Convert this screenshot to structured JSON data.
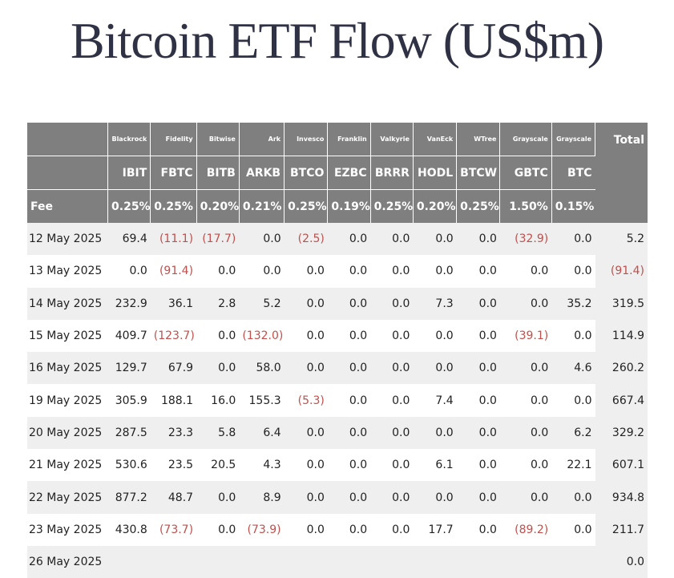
{
  "title": "Bitcoin ETF Flow (US$m)",
  "table": {
    "total_label": "Total",
    "fee_label": "Fee",
    "issuers": [
      "Blackrock",
      "Fidelity",
      "Bitwise",
      "Ark",
      "Invesco",
      "Franklin",
      "Valkyrie",
      "VanEck",
      "WTree",
      "Grayscale",
      "Grayscale"
    ],
    "tickers": [
      "IBIT",
      "FBTC",
      "BITB",
      "ARKB",
      "BTCO",
      "EZBC",
      "BRRR",
      "HODL",
      "BTCW",
      "GBTC",
      "BTC"
    ],
    "fees": [
      "0.25%",
      "0.25%",
      "0.20%",
      "0.21%",
      "0.25%",
      "0.19%",
      "0.25%",
      "0.20%",
      "0.25%",
      "1.50%",
      "0.15%"
    ],
    "rows": [
      {
        "date": "12 May 2025",
        "values": [
          "69.4",
          "(11.1)",
          "(17.7)",
          "0.0",
          "(2.5)",
          "0.0",
          "0.0",
          "0.0",
          "0.0",
          "(32.9)",
          "0.0"
        ],
        "total": "5.2"
      },
      {
        "date": "13 May 2025",
        "values": [
          "0.0",
          "(91.4)",
          "0.0",
          "0.0",
          "0.0",
          "0.0",
          "0.0",
          "0.0",
          "0.0",
          "0.0",
          "0.0"
        ],
        "total": "(91.4)"
      },
      {
        "date": "14 May 2025",
        "values": [
          "232.9",
          "36.1",
          "2.8",
          "5.2",
          "0.0",
          "0.0",
          "0.0",
          "7.3",
          "0.0",
          "0.0",
          "35.2"
        ],
        "total": "319.5"
      },
      {
        "date": "15 May 2025",
        "values": [
          "409.7",
          "(123.7)",
          "0.0",
          "(132.0)",
          "0.0",
          "0.0",
          "0.0",
          "0.0",
          "0.0",
          "(39.1)",
          "0.0"
        ],
        "total": "114.9"
      },
      {
        "date": "16 May 2025",
        "values": [
          "129.7",
          "67.9",
          "0.0",
          "58.0",
          "0.0",
          "0.0",
          "0.0",
          "0.0",
          "0.0",
          "0.0",
          "4.6"
        ],
        "total": "260.2"
      },
      {
        "date": "19 May 2025",
        "values": [
          "305.9",
          "188.1",
          "16.0",
          "155.3",
          "(5.3)",
          "0.0",
          "0.0",
          "7.4",
          "0.0",
          "0.0",
          "0.0"
        ],
        "total": "667.4"
      },
      {
        "date": "20 May 2025",
        "values": [
          "287.5",
          "23.3",
          "5.8",
          "6.4",
          "0.0",
          "0.0",
          "0.0",
          "0.0",
          "0.0",
          "0.0",
          "6.2"
        ],
        "total": "329.2"
      },
      {
        "date": "21 May 2025",
        "values": [
          "530.6",
          "23.5",
          "20.5",
          "4.3",
          "0.0",
          "0.0",
          "0.0",
          "6.1",
          "0.0",
          "0.0",
          "22.1"
        ],
        "total": "607.1"
      },
      {
        "date": "22 May 2025",
        "values": [
          "877.2",
          "48.7",
          "0.0",
          "8.9",
          "0.0",
          "0.0",
          "0.0",
          "0.0",
          "0.0",
          "0.0",
          "0.0"
        ],
        "total": "934.8"
      },
      {
        "date": "23 May 2025",
        "values": [
          "430.8",
          "(73.7)",
          "0.0",
          "(73.9)",
          "0.0",
          "0.0",
          "0.0",
          "17.7",
          "0.0",
          "(89.2)",
          "0.0"
        ],
        "total": "211.7"
      },
      {
        "date": "26 May 2025",
        "values": [
          "",
          "",
          "",
          "",
          "",
          "",
          "",
          "",
          "",
          "",
          ""
        ],
        "total": "0.0"
      }
    ]
  }
}
